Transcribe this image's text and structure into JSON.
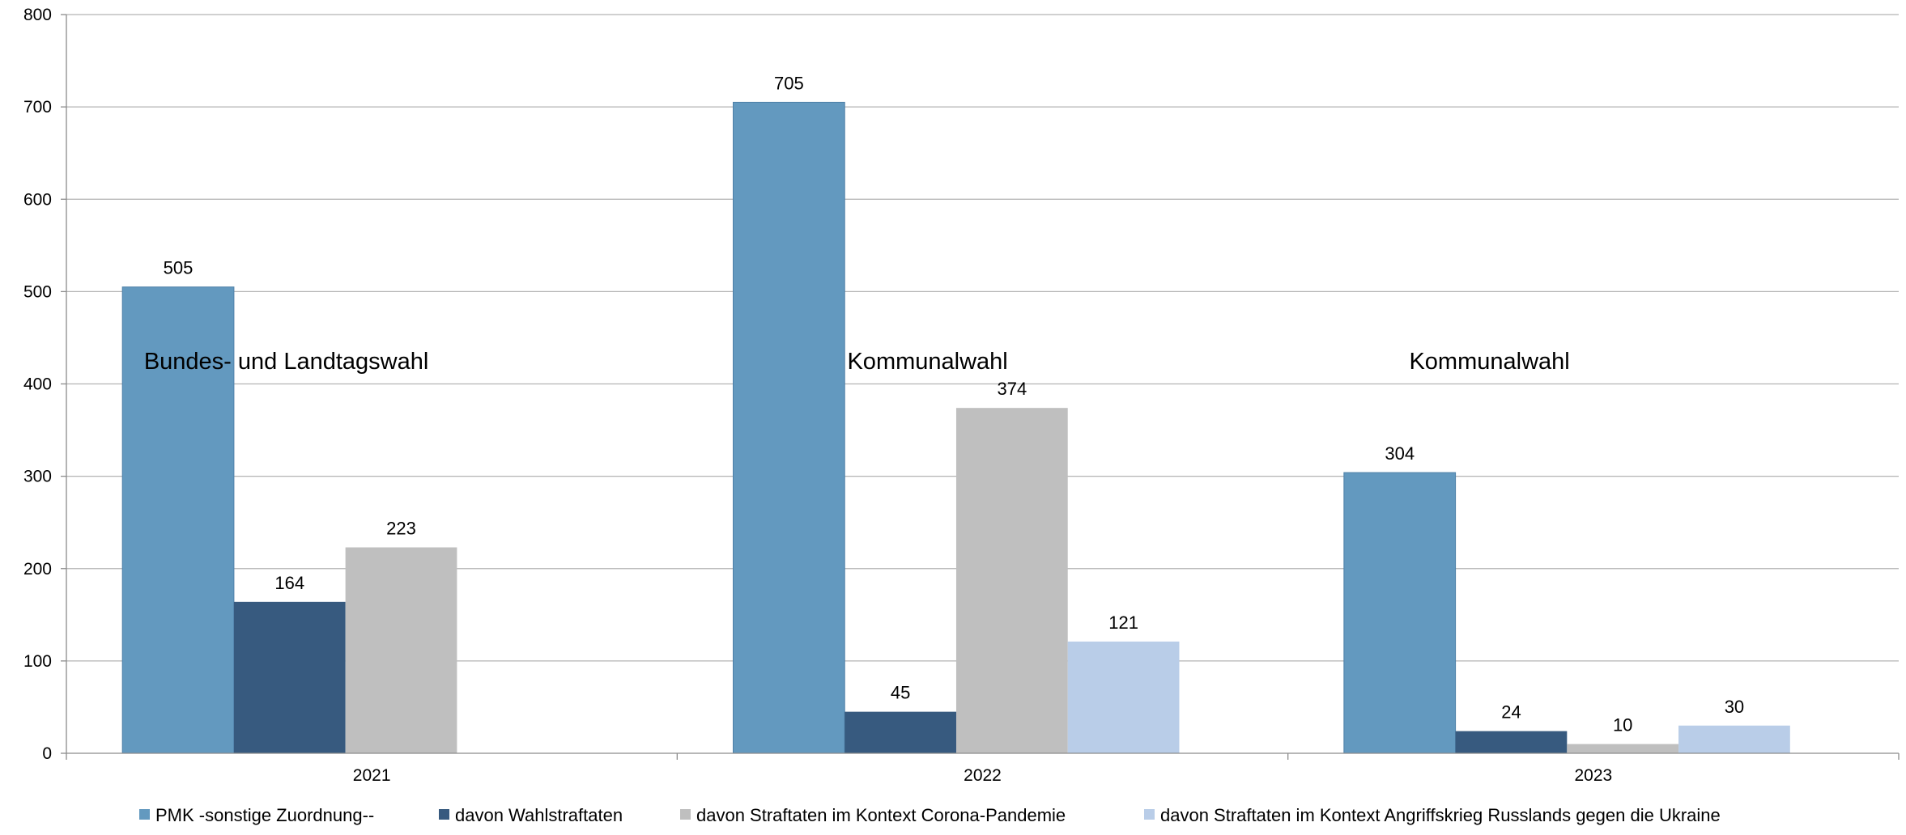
{
  "chart_data": {
    "type": "bar",
    "title": "",
    "xlabel": "",
    "ylabel": "",
    "categories": [
      "2021",
      "2022",
      "2023"
    ],
    "ylim": [
      0,
      800
    ],
    "yticks": [
      0,
      100,
      200,
      300,
      400,
      500,
      600,
      700,
      800
    ],
    "grid": true,
    "legend_position": "bottom",
    "series": [
      {
        "name": "PMK -sonstige Zuordnung--",
        "color": "#6399bf",
        "values": [
          505,
          705,
          304
        ]
      },
      {
        "name": "davon Wahlstraftaten",
        "color": "#375a7f",
        "values": [
          164,
          45,
          24
        ]
      },
      {
        "name": "davon Straftaten im Kontext Corona-Pandemie",
        "color": "#bfbfbf",
        "values": [
          223,
          374,
          10
        ]
      },
      {
        "name": "davon Straftaten im Kontext Angriffskrieg Russlands gegen die Ukraine",
        "color": "#b9cde8",
        "values": [
          null,
          121,
          30
        ]
      }
    ],
    "annotations": [
      {
        "text": "Bundes- und Landtagswahl",
        "category": "2021"
      },
      {
        "text": "Kommunalwahl",
        "category": "2022"
      },
      {
        "text": "Kommunalwahl",
        "category": "2023"
      }
    ]
  }
}
